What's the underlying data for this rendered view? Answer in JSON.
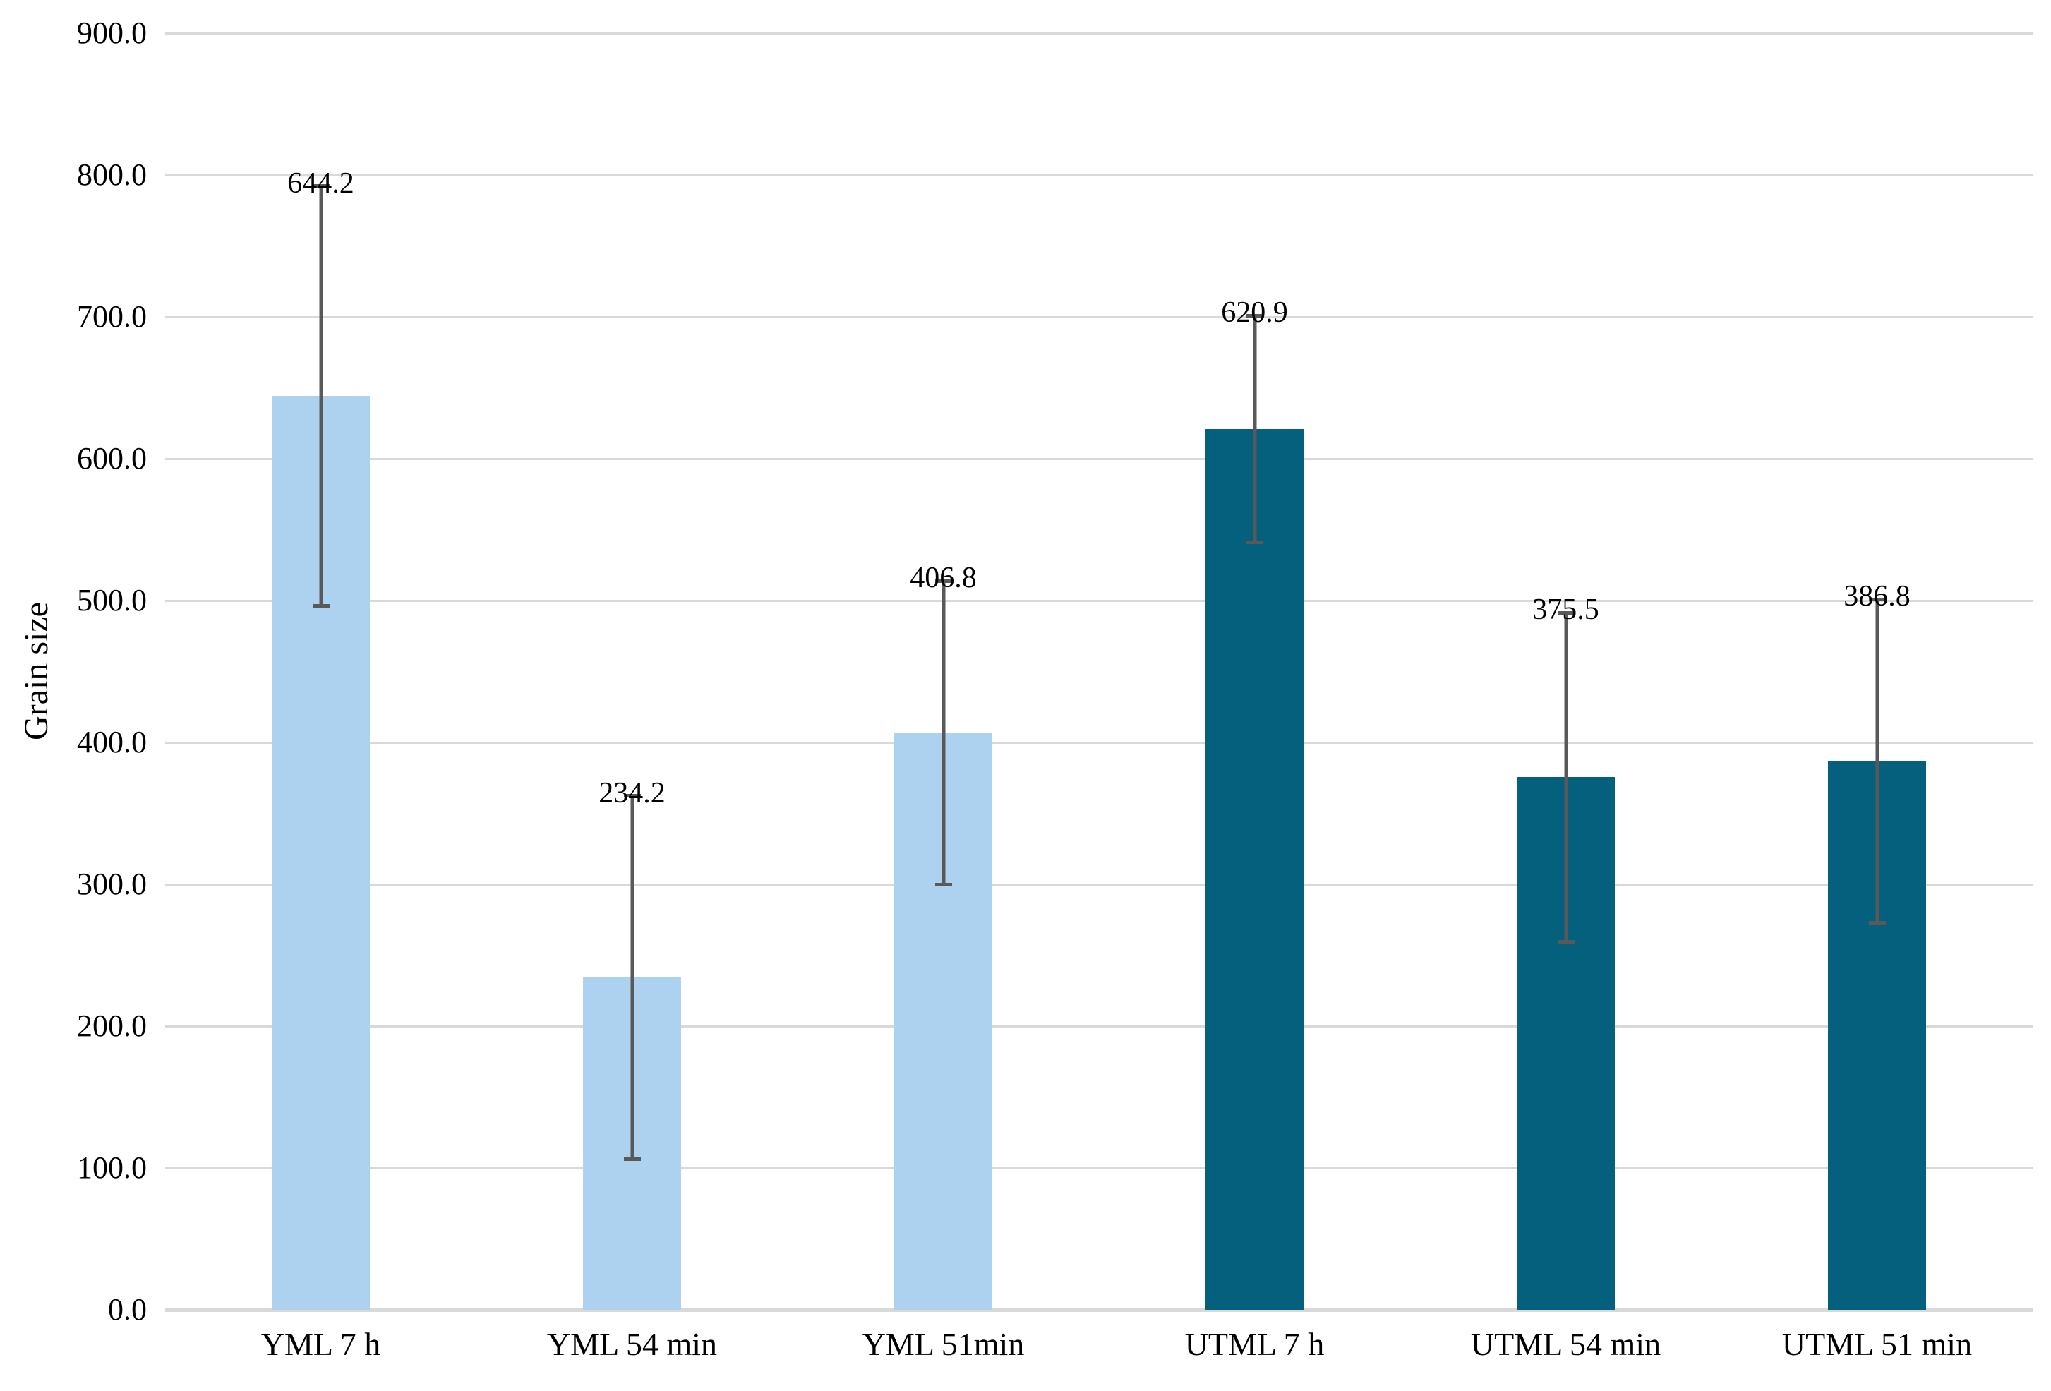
{
  "chart_data": {
    "type": "bar",
    "title": "",
    "xlabel": "",
    "ylabel": "Grain size",
    "ylim": [
      0,
      900
    ],
    "ytick_step": 100,
    "ytick_labels": [
      "0.0",
      "100.0",
      "200.0",
      "300.0",
      "400.0",
      "500.0",
      "600.0",
      "700.0",
      "800.0",
      "900.0"
    ],
    "grid": true,
    "legend": false,
    "categories": [
      "YML 7 h",
      "YML 54 min",
      "YML 51min",
      "UTML 7 h",
      "UTML 54 min",
      "UTML 51 min"
    ],
    "series": [
      {
        "name": "Grain size",
        "values": [
          644.2,
          234.2,
          406.8,
          620.9,
          375.5,
          386.8
        ],
        "errors": [
          148,
          128,
          107,
          80,
          116,
          114
        ],
        "data_labels": [
          "644.2",
          "234.2",
          "406.8",
          "620.9",
          "375.5",
          "386.8"
        ]
      }
    ],
    "bar_colors": [
      "#ACD2EF",
      "#ACD2EF",
      "#ACD2EF",
      "#05607E",
      "#05607E",
      "#05607E"
    ],
    "error_bar_color": "#595959",
    "gridline_color": "#D9D9D9",
    "axis_line_color": "#D9D9D9",
    "text_color": "#000000",
    "background": "#FFFFFF"
  }
}
